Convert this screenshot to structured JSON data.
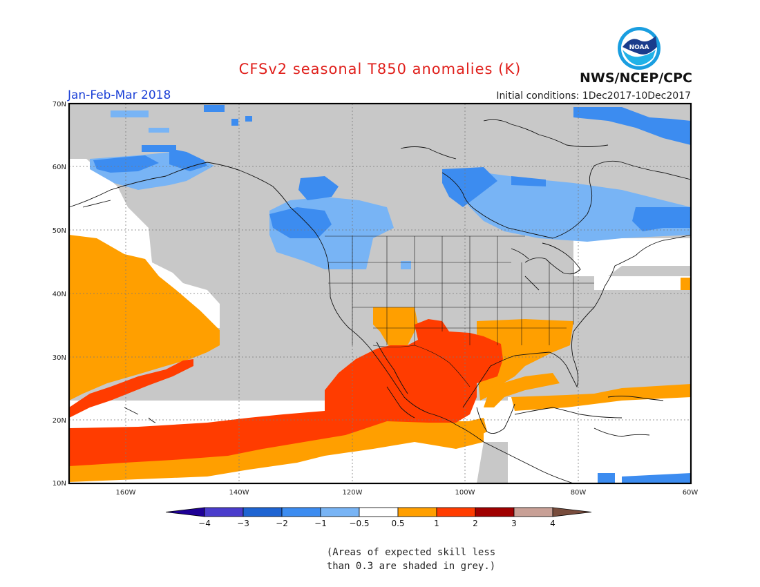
{
  "title": "CFSv2 seasonal T850 anomalies (K)",
  "period": "Jan-Feb-Mar 2018",
  "initial_conditions": "Initial conditions: 1Dec2017-10Dec2017",
  "agency": "NWS/NCEP/CPC",
  "logo_text": "NOAA",
  "lat_labels": [
    "70N",
    "60N",
    "50N",
    "40N",
    "30N",
    "20N",
    "10N"
  ],
  "lon_labels": [
    "160W",
    "140W",
    "120W",
    "100W",
    "80W",
    "60W"
  ],
  "colorbar": {
    "tick_labels": [
      "-4",
      "-3",
      "-2",
      "-1",
      "-0.5",
      "0.5",
      "1",
      "2",
      "3",
      "4"
    ],
    "colors": [
      "#1e0096",
      "#4a3ccc",
      "#1e64d2",
      "#3c8cf0",
      "#78b4f5",
      "#ffffff",
      "#ff9f00",
      "#ff3c00",
      "#a00000",
      "#c8a096",
      "#784c3c"
    ]
  },
  "note_lines": [
    "(Areas of expected skill less",
    "than 0.3 are shaded in grey.)"
  ],
  "colors": {
    "grey_low_skill": "#c8c8c8",
    "neutral": "#ffffff",
    "warm_0_5_to_1": "#ff9f00",
    "warm_1_to_2": "#ff3c00",
    "cool_-1_to_-0_5": "#78b4f5",
    "cool_-2_to_-1": "#3c8cf0"
  }
}
